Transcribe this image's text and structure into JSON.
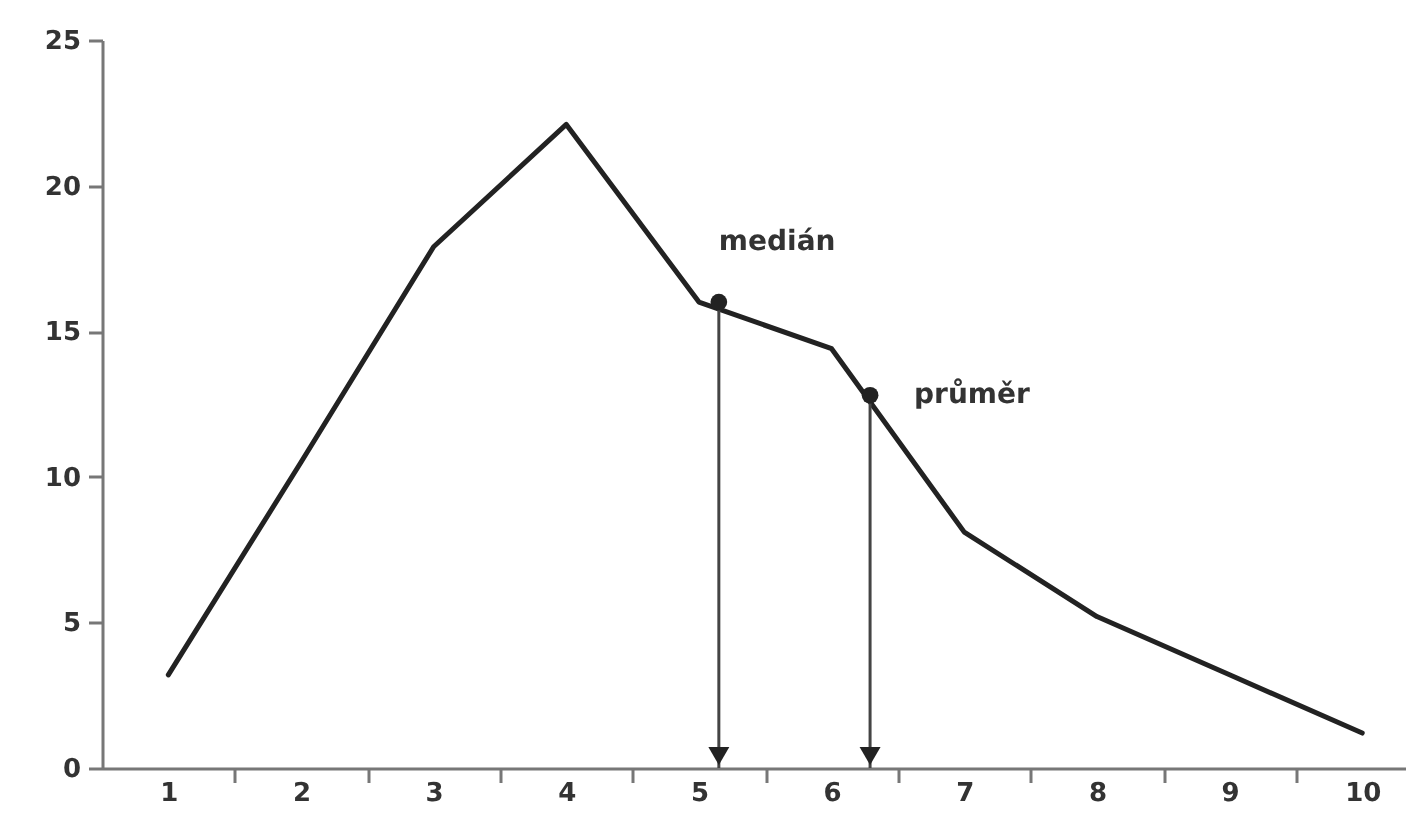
{
  "chart_data": {
    "type": "line",
    "x": [
      1,
      2,
      3,
      4,
      5,
      6,
      7,
      8,
      9,
      10
    ],
    "series": [
      {
        "color": "#222222",
        "values": [
          3.2,
          10.5,
          17.9,
          22.1,
          16.0,
          14.4,
          8.1,
          5.2,
          3.2,
          1.2
        ]
      }
    ],
    "xlim": [
      0.5,
      10.33
    ],
    "xticks": [
      1,
      {
        "value": 1.5,
        "label": null
      },
      2,
      {
        "value": 2.5,
        "label": null
      },
      3,
      {
        "value": 3.5,
        "label": null
      },
      4,
      {
        "value": 4.5,
        "label": null
      },
      5,
      {
        "value": 5.5,
        "label": null
      },
      6,
      {
        "value": 6.5,
        "label": null
      },
      7,
      {
        "value": 7.5,
        "label": null
      },
      8,
      {
        "value": 8.5,
        "label": null
      },
      9,
      {
        "value": 9.5,
        "label": null
      },
      10
    ],
    "ylim": [
      0,
      25
    ],
    "yticks": [
      0,
      5,
      10,
      15,
      20,
      25
    ],
    "grid": false,
    "annotations": [
      {
        "text": "medián",
        "x": 5.15,
        "y": 16.0
      },
      {
        "text": "průměr",
        "x": 6.29,
        "y": 12.8
      }
    ]
  }
}
